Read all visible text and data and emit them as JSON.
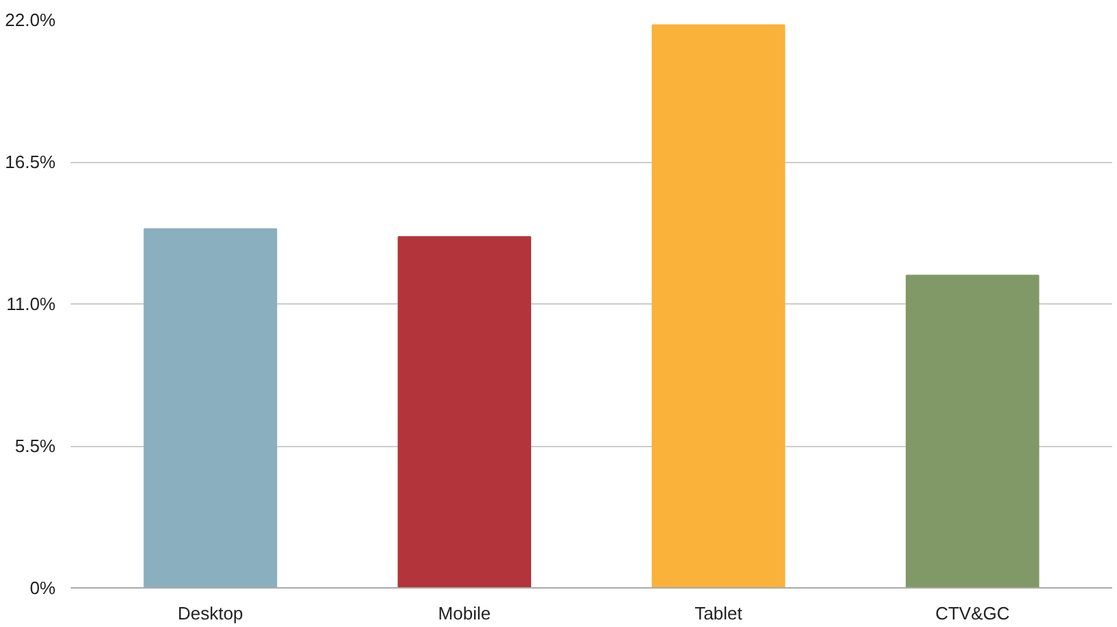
{
  "chart_data": {
    "type": "bar",
    "categories": [
      "Desktop",
      "Mobile",
      "Tablet",
      "CTV&GC"
    ],
    "values": [
      13.9,
      13.6,
      21.8,
      12.1
    ],
    "colors": [
      "#8aafbf",
      "#b3343a",
      "#fab23b",
      "#819966"
    ],
    "ylim": [
      0,
      22
    ],
    "yticks": [
      {
        "value": 0,
        "label": "0%"
      },
      {
        "value": 5.5,
        "label": "5.5%"
      },
      {
        "value": 11,
        "label": "11.0%"
      },
      {
        "value": 16.5,
        "label": "16.5%"
      },
      {
        "value": 22,
        "label": "22.0%"
      }
    ],
    "grid": "y"
  }
}
